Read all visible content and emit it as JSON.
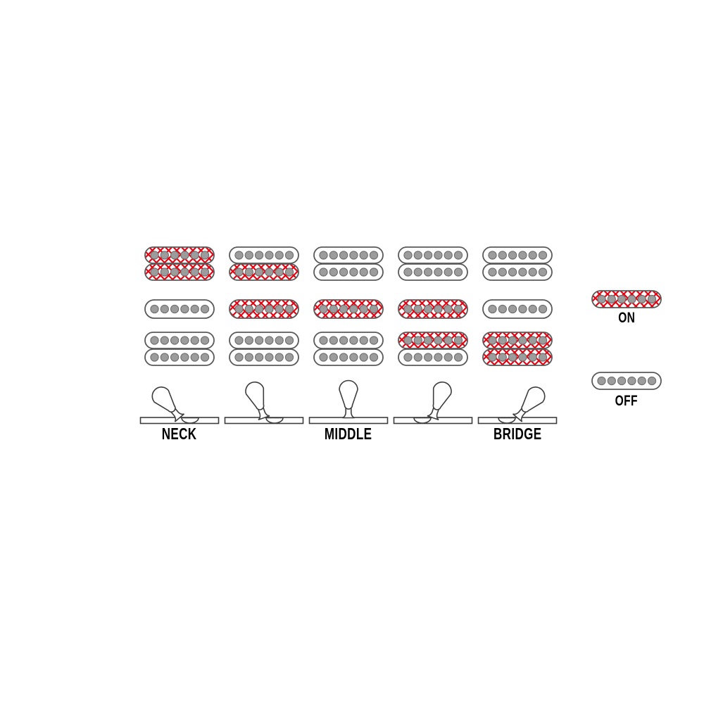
{
  "legend": {
    "on_label": "ON",
    "off_label": "OFF"
  },
  "position_labels": [
    "NECK",
    "",
    "MIDDLE",
    "",
    "BRIDGE"
  ],
  "positions": [
    {
      "label": "NECK",
      "switch_angle": -40,
      "neck_coils": [
        "on",
        "on"
      ],
      "middle_coil": "off",
      "bridge_coils": [
        "off",
        "off"
      ]
    },
    {
      "label": "",
      "switch_angle": -19,
      "neck_coils": [
        "off",
        "on"
      ],
      "middle_coil": "on",
      "bridge_coils": [
        "off",
        "off"
      ]
    },
    {
      "label": "MIDDLE",
      "switch_angle": 0,
      "neck_coils": [
        "off",
        "off"
      ],
      "middle_coil": "on",
      "bridge_coils": [
        "off",
        "off"
      ]
    },
    {
      "label": "",
      "switch_angle": 19,
      "neck_coils": [
        "off",
        "off"
      ],
      "middle_coil": "on",
      "bridge_coils": [
        "on",
        "off"
      ]
    },
    {
      "label": "BRIDGE",
      "switch_angle": 40,
      "neck_coils": [
        "off",
        "off"
      ],
      "middle_coil": "off",
      "bridge_coils": [
        "on",
        "on"
      ]
    }
  ],
  "colors": {
    "on_red": "#e8000f",
    "pattern_diamond": "#ffffff",
    "coil_fill_off": "#ffffff",
    "coil_stroke": "#595959",
    "pole_fill": "#9c9c9c",
    "pole_stroke": "#6e6e6e",
    "switch_stroke": "#3d3d3d",
    "label_text": "#000000"
  }
}
